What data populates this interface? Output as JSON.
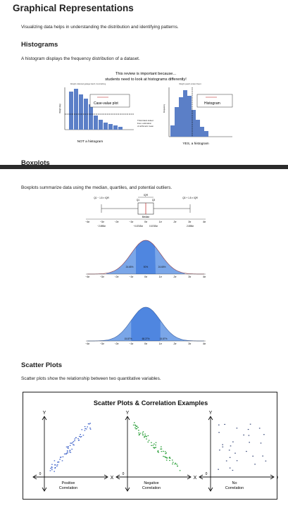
{
  "page": {
    "title": "Graphical Representations",
    "intro": "Visualizing data helps in understanding the distribution and identifying patterns."
  },
  "histograms": {
    "heading": "Histograms",
    "description": "A histogram displays the frequency distribution of a dataset.",
    "figure": {
      "headline_1": "This review is important because...",
      "headline_2": "students need to look at histograms differently!",
      "left_subtitle": "Weight collected gelatge batch, bcontrahing",
      "left_box_label": "Case-value plot",
      "left_caption": "NOT a histogram",
      "right_subtitle": "Weight peach protein fluent",
      "right_box_label": "Histogram",
      "right_caption": "YES, a histogram",
      "mean_note_1": "Thick black dotted",
      "mean_note_2": "lines: estimation",
      "mean_note_3": "of arithmetic mean"
    }
  },
  "boxplots": {
    "heading": "Boxplots",
    "description": "Boxplots summarize data using the median, quartiles, and potential outliers.",
    "figure": {
      "iqr_label": "IQR",
      "q1_label": "Q1",
      "q3_label": "Q3",
      "lower_fence_label": "Q1 − 1.5 × IQR",
      "upper_fence_label": "Q3 + 1.5 × IQR",
      "median_label": "Median",
      "sigma_ticks": [
        "−4σ",
        "−3σ",
        "−2σ",
        "−1σ",
        "0σ",
        "1σ",
        "2σ",
        "3σ",
        "4σ"
      ],
      "box_values": [
        "−2.698σ",
        "−0.6745σ",
        "0.6745σ",
        "2.698σ"
      ],
      "curve1_pcts": [
        "24.65%",
        "50%",
        "24.65%"
      ],
      "curve2_pcts": [
        "15.87%",
        "68.27%",
        "15.87%"
      ]
    }
  },
  "scatter": {
    "heading": "Scatter Plots",
    "description": "Scatter plots show the relationship between two quantitative variables.",
    "figure": {
      "title": "Scatter Plots & Correlation Examples",
      "y_label": "Y",
      "x_label": "X",
      "origin": "0",
      "panels": [
        {
          "line1": "Positive",
          "line2": "Correlation",
          "color": "#3a5fc8"
        },
        {
          "line1": "Negative",
          "line2": "Correlation",
          "color": "#1e9a2e"
        },
        {
          "line1": "No",
          "line2": "Correlation",
          "color": "#3a4a7a"
        }
      ]
    }
  },
  "colors": {
    "bar_blue": "#5b7fc7",
    "curve_blue": "#7aa6e8",
    "curve_blue_dark": "#4f86e0",
    "accent_red": "#c23a3a"
  }
}
